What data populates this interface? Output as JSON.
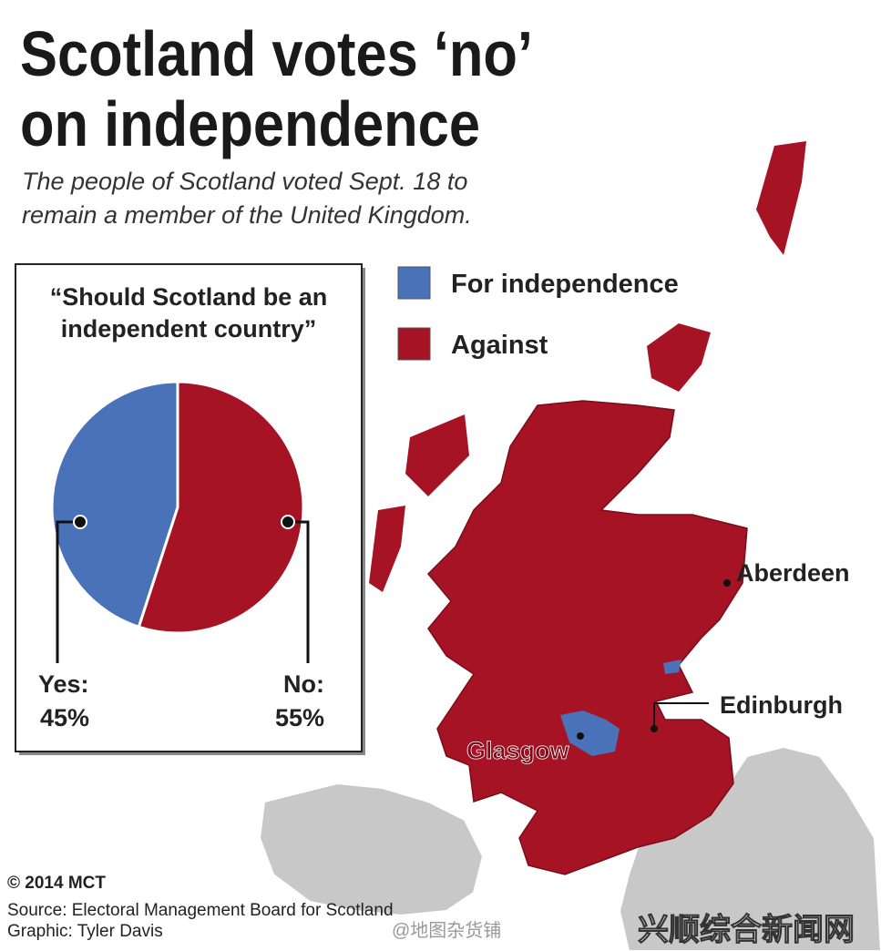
{
  "chart_data": {
    "type": "pie",
    "title": [
      "Scotland votes ‘no’",
      "on independence"
    ],
    "subtitle": [
      "The people of Scotland voted Sept. 18 to",
      "remain a member of the United Kingdom."
    ],
    "question": [
      "“Should Scotland be an",
      "independent country”"
    ],
    "legend": [
      "For independence",
      "Against"
    ],
    "categories": [
      "Yes:",
      "No:"
    ],
    "values": [
      45,
      55
    ],
    "value_labels": [
      "45%",
      "55%"
    ],
    "colors": [
      "#4a72b8",
      "#a51324"
    ]
  },
  "map": {
    "labels": [
      "Aberdeen",
      "Edinburgh",
      "Glasgow"
    ]
  },
  "footer": {
    "copyright": "© 2014 MCT",
    "source": "Source: Electoral Management Board for Scotland",
    "credit": "Graphic: Tyler Davis",
    "watermarks": [
      "@地图杂货铺",
      "兴顺综合新闻网"
    ]
  }
}
